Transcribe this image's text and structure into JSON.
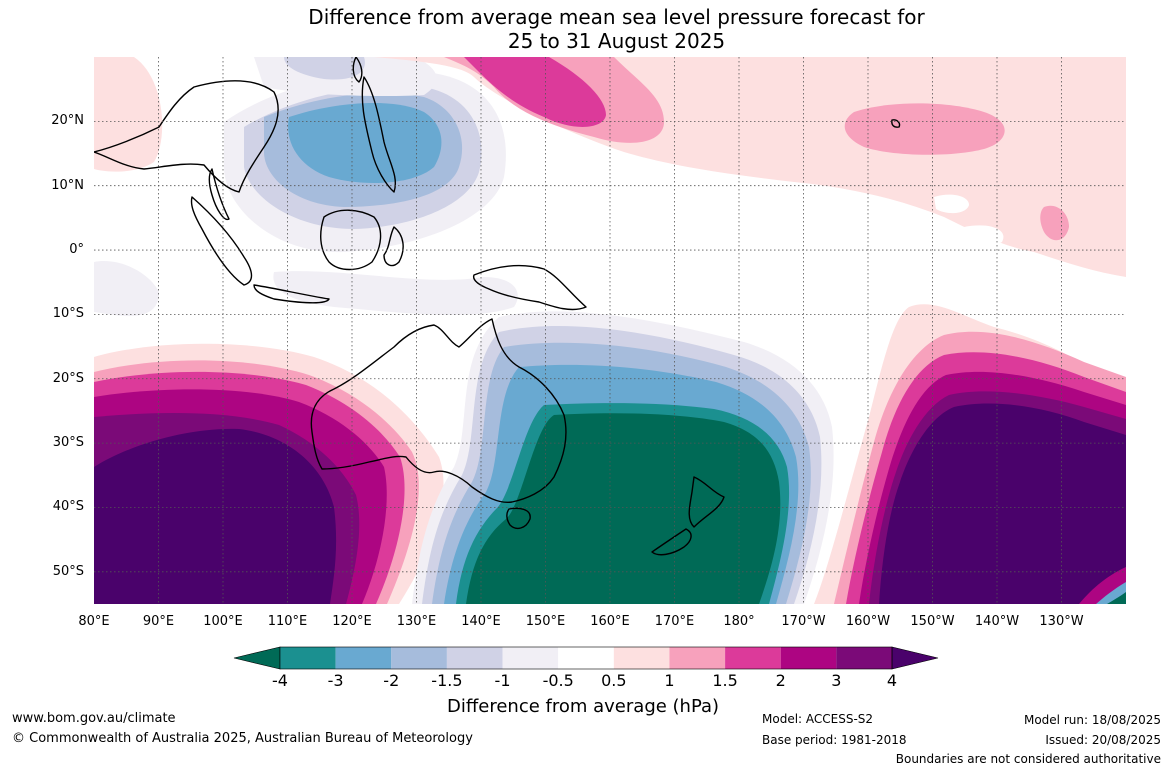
{
  "title": {
    "line1": "Difference from average mean sea level pressure forecast for",
    "line2": "25 to 31 August 2025"
  },
  "map": {
    "lat_labels": [
      "20°N",
      "10°N",
      "0°",
      "10°S",
      "20°S",
      "30°S",
      "40°S",
      "50°S"
    ],
    "lon_labels": [
      "80°E",
      "90°E",
      "100°E",
      "110°E",
      "120°E",
      "130°E",
      "140°E",
      "150°E",
      "160°E",
      "170°E",
      "180°",
      "170°W",
      "160°W",
      "150°W",
      "140°W",
      "130°W"
    ],
    "extent": {
      "lon_min": 80,
      "lon_max": 240,
      "lat_min": -55,
      "lat_max": 30
    },
    "gridlines": true,
    "pressure_systems": [
      {
        "type": "high-anomaly",
        "center_lon": 95,
        "center_lat": -40,
        "peak_hPa": 4
      },
      {
        "type": "low-anomaly",
        "center_lon": 165,
        "center_lat": -40,
        "peak_hPa": -4
      },
      {
        "type": "high-anomaly",
        "center_lon": 218,
        "center_lat": -37,
        "peak_hPa": 4
      },
      {
        "type": "low-anomaly",
        "center_lon": 117,
        "center_lat": 19,
        "peak_hPa": -3
      },
      {
        "type": "high-anomaly",
        "center_lon": 140,
        "center_lat": 25,
        "peak_hPa": 2
      },
      {
        "type": "high-anomaly",
        "center_lon": 201,
        "center_lat": 19,
        "peak_hPa": 1.5
      }
    ]
  },
  "colorbar": {
    "tick_labels": [
      "-4",
      "-3",
      "-2",
      "-1.5",
      "-1",
      "-0.5",
      "0.5",
      "1",
      "1.5",
      "2",
      "3",
      "4"
    ],
    "colors": [
      "#006a56",
      "#1b9090",
      "#69a9d1",
      "#a6bcdc",
      "#d0d2e6",
      "#f1eff5",
      "#ffffff",
      "#fde0e0",
      "#f7a1bc",
      "#dc3a9a",
      "#ad0582",
      "#7b0a78",
      "#4a026b"
    ],
    "title": "Difference from average (hPa)"
  },
  "footer": {
    "site": "www.bom.gov.au/climate",
    "copyright": "© Commonwealth of Australia 2025, Australian Bureau of Meteorology",
    "model": "Model: ACCESS-S2",
    "base_period": "Base period: 1981-2018",
    "model_run": "Model run: 18/08/2025",
    "issued": "Issued: 20/08/2025",
    "disclaimer": "Boundaries are not considered authoritative"
  }
}
